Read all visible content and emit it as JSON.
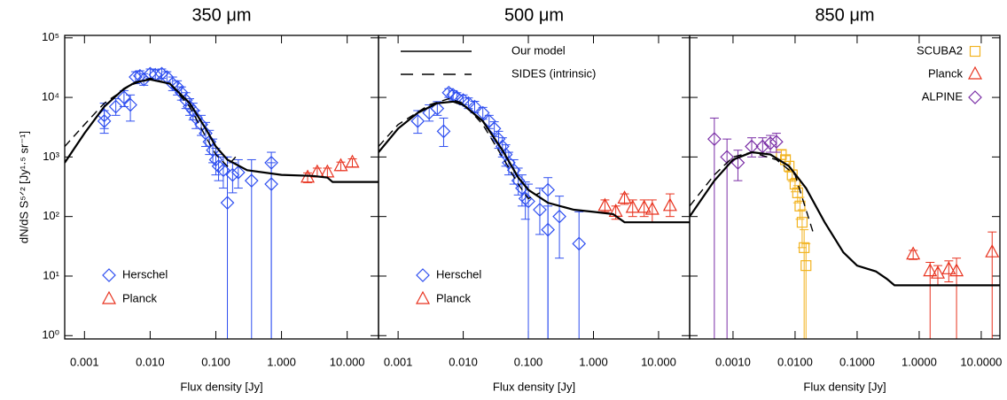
{
  "chart_data": [
    {
      "type": "scatter",
      "title": "350 μm",
      "xlabel": "Flux density [Jy]",
      "ylabel": "dN/dS S⁵ᐟ² [Jy¹·⁵ sr⁻¹]",
      "xscale": "log",
      "yscale": "log",
      "xlim": [
        0.0005,
        30
      ],
      "ylim": [
        0.88,
        110000
      ],
      "xticks": [
        {
          "value": 0.001,
          "label": "0.001"
        },
        {
          "value": 0.01,
          "label": "0.010"
        },
        {
          "value": 0.1,
          "label": "0.100"
        },
        {
          "value": 1,
          "label": "1.000"
        },
        {
          "value": 10,
          "label": "10.000"
        }
      ],
      "yticks": [
        {
          "value": 1,
          "label": "10⁰"
        },
        {
          "value": 10,
          "label": "10¹"
        },
        {
          "value": 100,
          "label": "10²"
        },
        {
          "value": 1000,
          "label": "10³"
        },
        {
          "value": 10000,
          "label": "10⁴"
        },
        {
          "value": 100000,
          "label": "10⁵"
        }
      ],
      "series": [
        {
          "name": "Herschel",
          "color": "#2f4ff0",
          "marker": "diamond",
          "legend": "lower left",
          "x": [
            0.002,
            0.002,
            0.003,
            0.004,
            0.005,
            0.006,
            0.007,
            0.008,
            0.01,
            0.012,
            0.015,
            0.018,
            0.022,
            0.026,
            0.03,
            0.035,
            0.04,
            0.045,
            0.05,
            0.06,
            0.07,
            0.08,
            0.09,
            0.1,
            0.11,
            0.13,
            0.15,
            0.18,
            0.22,
            0.35,
            0.7,
            0.7
          ],
          "values": [
            5000,
            4000,
            7000,
            10000,
            7500,
            22000,
            23000,
            20000,
            25000,
            24000,
            25000,
            22000,
            17000,
            15000,
            12000,
            9000,
            7000,
            6000,
            4500,
            3500,
            2500,
            1800,
            1300,
            900,
            700,
            600,
            170,
            500,
            550,
            400,
            800,
            350
          ],
          "lows": [
            3000,
            2500,
            5000,
            7000,
            4000,
            17000,
            19000,
            16000,
            21000,
            20000,
            21000,
            18000,
            13000,
            11000,
            9000,
            6500,
            5000,
            4200,
            3000,
            2300,
            1500,
            1100,
            800,
            500,
            400,
            300,
            0.5,
            250,
            300,
            0.5,
            0.5,
            0.5
          ],
          "highs": [
            8000,
            6000,
            9500,
            13000,
            11000,
            27000,
            28000,
            25000,
            30000,
            29000,
            30000,
            27000,
            22000,
            19000,
            15000,
            12000,
            9500,
            8000,
            6000,
            5000,
            3800,
            2800,
            2000,
            1400,
            1100,
            1000,
            1000,
            800,
            900,
            900,
            1200,
            800
          ]
        },
        {
          "name": "Planck",
          "color": "#e8321e",
          "marker": "triangle",
          "legend": "lower left",
          "x": [
            2.5,
            3.5,
            5,
            8,
            12
          ],
          "values": [
            450,
            550,
            550,
            700,
            800
          ],
          "lows": [
            370,
            460,
            460,
            590,
            680
          ],
          "highs": [
            540,
            650,
            650,
            820,
            930
          ]
        },
        {
          "color": "#000000",
          "marker": "line",
          "x": [
            0.0005,
            0.001,
            0.002,
            0.004,
            0.006,
            0.01,
            0.02,
            0.04,
            0.07,
            0.1,
            0.15,
            0.3,
            1,
            3,
            5,
            6,
            30
          ],
          "values": [
            800,
            2500,
            7000,
            14000,
            18000,
            20000,
            17000,
            8000,
            3000,
            1500,
            900,
            600,
            500,
            480,
            450,
            380,
            380
          ]
        },
        {
          "color": "#000000",
          "marker": "dashed",
          "x": [
            0.0005,
            0.001,
            0.002,
            0.005,
            0.01,
            0.02,
            0.04,
            0.07,
            0.1,
            0.15,
            0.2
          ],
          "values": [
            1500,
            3500,
            8000,
            16000,
            21000,
            17000,
            7000,
            2200,
            1100,
            700,
            1000
          ]
        }
      ]
    },
    {
      "type": "scatter",
      "title": "500 μm",
      "xlabel": "Flux density [Jy]",
      "xscale": "log",
      "yscale": "log",
      "xlim": [
        0.0005,
        30
      ],
      "ylim": [
        0.88,
        110000
      ],
      "ytick_labels": false,
      "xticks": [
        {
          "value": 0.001,
          "label": "0.001"
        },
        {
          "value": 0.01,
          "label": "0.010"
        },
        {
          "value": 0.1,
          "label": "0.100"
        },
        {
          "value": 1,
          "label": "1.000"
        },
        {
          "value": 10,
          "label": "10.000"
        }
      ],
      "yticks": [
        1,
        10,
        100,
        1000,
        10000,
        100000
      ],
      "series": [
        {
          "name": "Herschel",
          "color": "#2f4ff0",
          "marker": "diamond",
          "legend": "lower left",
          "x": [
            0.002,
            0.003,
            0.004,
            0.005,
            0.006,
            0.007,
            0.008,
            0.01,
            0.012,
            0.015,
            0.02,
            0.025,
            0.03,
            0.035,
            0.04,
            0.045,
            0.05,
            0.06,
            0.07,
            0.08,
            0.09,
            0.1,
            0.15,
            0.2,
            0.2,
            0.3,
            0.6
          ],
          "values": [
            4000,
            5500,
            6500,
            2700,
            12000,
            11000,
            10000,
            9000,
            8000,
            7000,
            5500,
            4000,
            3000,
            2000,
            1500,
            1100,
            800,
            600,
            400,
            300,
            200,
            180,
            130,
            280,
            60,
            100,
            35
          ],
          "lows": [
            2500,
            4000,
            5000,
            1500,
            10000,
            9000,
            8500,
            7500,
            6500,
            5500,
            4300,
            3000,
            2200,
            1400,
            1000,
            700,
            500,
            350,
            230,
            150,
            90,
            0.5,
            50,
            0.5,
            0.5,
            20,
            0.5
          ],
          "highs": [
            6000,
            7500,
            8500,
            4500,
            14000,
            13000,
            12000,
            11000,
            9800,
            8600,
            6800,
            5000,
            3900,
            2700,
            2100,
            1600,
            1200,
            900,
            650,
            500,
            380,
            350,
            300,
            450,
            150,
            220,
            120
          ]
        },
        {
          "name": "Planck",
          "color": "#e8321e",
          "marker": "triangle",
          "legend": "lower left",
          "x": [
            1.5,
            2.2,
            3,
            4,
            6,
            8,
            15
          ],
          "values": [
            150,
            120,
            200,
            140,
            140,
            130,
            150
          ],
          "lows": [
            120,
            90,
            160,
            100,
            100,
            80,
            100
          ],
          "highs": [
            190,
            150,
            240,
            190,
            190,
            190,
            240
          ]
        },
        {
          "name": "Our model",
          "color": "#000000",
          "marker": "line",
          "legend": "upper left",
          "x": [
            0.0005,
            0.001,
            0.002,
            0.004,
            0.007,
            0.01,
            0.02,
            0.04,
            0.07,
            0.1,
            0.2,
            0.5,
            1,
            2,
            3,
            30
          ],
          "values": [
            1200,
            3000,
            5500,
            8000,
            8500,
            7500,
            4000,
            1300,
            450,
            280,
            170,
            130,
            120,
            110,
            80,
            80
          ]
        },
        {
          "name": "SIDES (intrinsic)",
          "color": "#000000",
          "marker": "dashed",
          "legend": "upper left",
          "x": [
            0.0005,
            0.001,
            0.003,
            0.006,
            0.01,
            0.02,
            0.04,
            0.07,
            0.1,
            0.15
          ],
          "values": [
            1500,
            3500,
            7500,
            9500,
            8000,
            3500,
            1000,
            350,
            200,
            250
          ]
        }
      ]
    },
    {
      "type": "scatter",
      "title": "850 μm",
      "xlabel": "Flux density [Jy]",
      "xscale": "log",
      "yscale": "log",
      "xlim": [
        0.0002,
        20
      ],
      "ylim": [
        0.88,
        110000
      ],
      "ytick_labels": false,
      "xticks": [
        {
          "value": 0.001,
          "label": "0.0010"
        },
        {
          "value": 0.01,
          "label": "0.0100"
        },
        {
          "value": 0.1,
          "label": "0.1000"
        },
        {
          "value": 1,
          "label": "1.0000"
        },
        {
          "value": 10,
          "label": "10.0000"
        }
      ],
      "yticks": [
        1,
        10,
        100,
        1000,
        10000,
        100000
      ],
      "series": [
        {
          "name": "SCUBA2",
          "color": "#f2b320",
          "marker": "square",
          "legend": "upper right",
          "x": [
            0.006,
            0.007,
            0.008,
            0.009,
            0.01,
            0.011,
            0.012,
            0.013,
            0.014,
            0.015
          ],
          "values": [
            1100,
            900,
            700,
            500,
            350,
            250,
            150,
            80,
            30,
            15
          ],
          "lows": [
            900,
            750,
            560,
            390,
            260,
            170,
            90,
            30,
            0.5,
            0.5
          ],
          "highs": [
            1300,
            1050,
            840,
            610,
            440,
            330,
            210,
            130,
            60,
            35
          ]
        },
        {
          "name": "Planck",
          "color": "#e8321e",
          "marker": "triangle",
          "legend": "upper right",
          "x": [
            0.8,
            1.5,
            2,
            3,
            4,
            15
          ],
          "values": [
            23,
            12,
            11,
            13,
            12,
            25
          ],
          "lows": [
            19,
            0.5,
            7,
            8,
            0.5,
            0.5
          ],
          "highs": [
            27,
            17,
            15,
            18,
            20,
            55
          ]
        },
        {
          "name": "ALPINE",
          "color": "#7a2ea6",
          "marker": "diamond",
          "legend": "upper right",
          "x": [
            0.0005,
            0.0008,
            0.0012,
            0.002,
            0.003,
            0.004,
            0.005
          ],
          "values": [
            2000,
            1000,
            800,
            1500,
            1500,
            1700,
            1800
          ],
          "lows": [
            0.5,
            0.5,
            400,
            1000,
            1000,
            1200,
            1200
          ],
          "highs": [
            4500,
            2000,
            1300,
            2100,
            2100,
            2300,
            2500
          ]
        },
        {
          "color": "#000000",
          "marker": "line",
          "x": [
            0.0002,
            0.0005,
            0.001,
            0.002,
            0.004,
            0.008,
            0.015,
            0.03,
            0.06,
            0.1,
            0.2,
            0.3,
            0.4,
            20
          ],
          "values": [
            100,
            400,
            900,
            1200,
            1100,
            700,
            300,
            80,
            25,
            15,
            12,
            9,
            7,
            7
          ]
        },
        {
          "color": "#000000",
          "marker": "dashed",
          "x": [
            0.0002,
            0.0005,
            0.001,
            0.002,
            0.005,
            0.01,
            0.02
          ],
          "values": [
            150,
            500,
            1000,
            1200,
            900,
            500,
            50
          ]
        }
      ]
    }
  ]
}
